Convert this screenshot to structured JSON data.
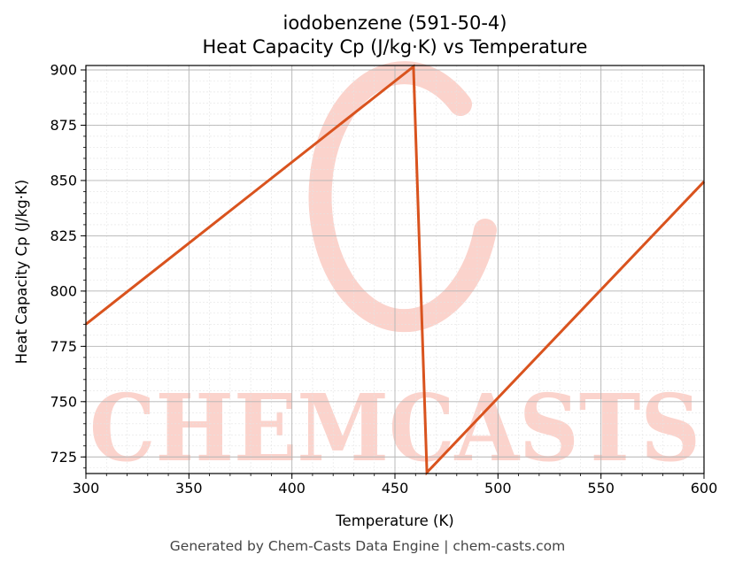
{
  "chart_data": {
    "type": "line",
    "title_line1": "iodobenzene (591-50-4)",
    "title_line2": "Heat Capacity Cp (J/kg·K) vs Temperature",
    "xlabel": "Temperature (K)",
    "ylabel": "Heat Capacity Cp (J/kg·K)",
    "xlim": [
      300,
      600
    ],
    "ylim": [
      717.5,
      902
    ],
    "x_ticks": [
      300,
      350,
      400,
      450,
      500,
      550,
      600
    ],
    "y_ticks": [
      725,
      750,
      775,
      800,
      825,
      850,
      875,
      900
    ],
    "grid": true,
    "line_color": "#d9531e",
    "series": [
      {
        "x": [
          300,
          459,
          465.5,
          600
        ],
        "y": [
          785,
          901.5,
          718,
          849.5
        ]
      }
    ]
  },
  "watermark": {
    "text": "CHEMCASTS",
    "color": "#fbd3cc"
  },
  "footer": "Generated by Chem-Casts Data Engine | chem-casts.com"
}
